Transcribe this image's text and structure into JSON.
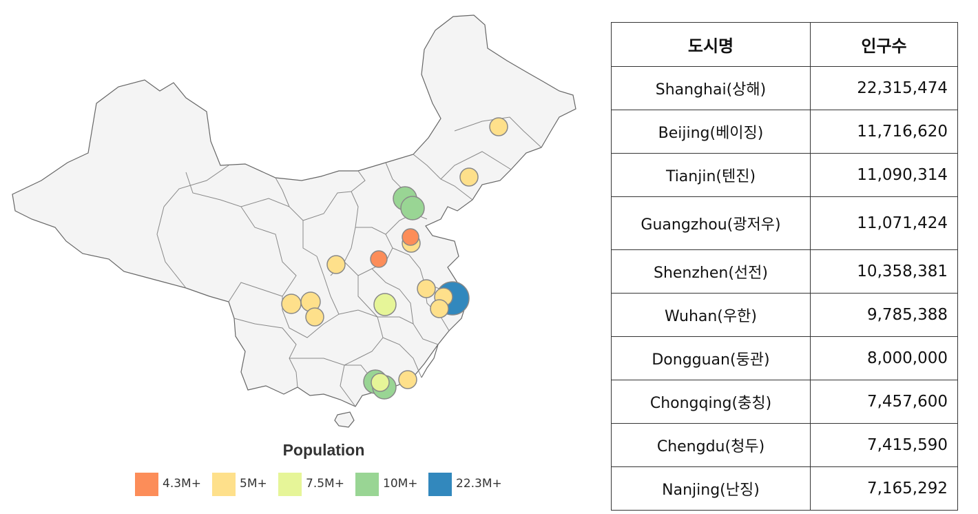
{
  "legend": {
    "title": "Population",
    "items": [
      {
        "label": "4.3M+",
        "color": "#fc8d59"
      },
      {
        "label": "5M+",
        "color": "#fee08b"
      },
      {
        "label": "7.5M+",
        "color": "#e6f598"
      },
      {
        "label": "10M+",
        "color": "#99d594"
      },
      {
        "label": "22.3M+",
        "color": "#3288bd"
      }
    ]
  },
  "table": {
    "headers": [
      "도시명",
      "인구수"
    ],
    "rows": [
      {
        "city": "Shanghai(상해)",
        "population": "22,315,474"
      },
      {
        "city": "Beijing(베이징)",
        "population": "11,716,620"
      },
      {
        "city": "Tianjin(텐진)",
        "population": "11,090,314"
      },
      {
        "city": "Guangzhou(광저우)",
        "population": "11,071,424"
      },
      {
        "city": "Shenzhen(선전)",
        "population": "10,358,381"
      },
      {
        "city": "Wuhan(우한)",
        "population": "9,785,388"
      },
      {
        "city": "Dongguan(둥관)",
        "population": "8,000,000"
      },
      {
        "city": "Chongqing(충칭)",
        "population": "7,457,600"
      },
      {
        "city": "Chengdu(청두)",
        "population": "7,415,590"
      },
      {
        "city": "Nanjing(난징)",
        "population": "7,165,292"
      }
    ]
  },
  "map": {
    "land_color": "#f4f4f4",
    "border_color": "#666666",
    "bubble_stroke": "#888888"
  }
}
